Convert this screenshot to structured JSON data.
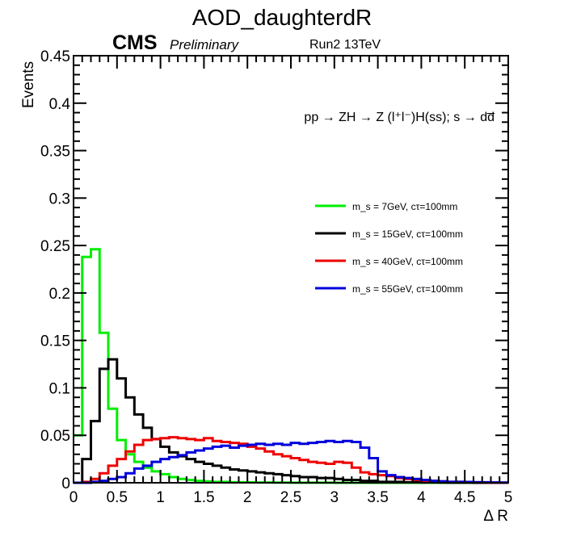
{
  "chart_data": {
    "type": "histogram",
    "title": "AOD_daughterdR",
    "cms_label": "CMS",
    "cms_sublabel": "Preliminary",
    "run_label": "Run2 13TeV",
    "process_label": "pp → ZH → Z (l⁺l⁻)H(ss); s → dd̅",
    "xlabel": "Δ R",
    "ylabel": "Events",
    "xlim": [
      0,
      5
    ],
    "ylim": [
      0,
      0.45
    ],
    "xticks": [
      0,
      0.5,
      1,
      1.5,
      2,
      2.5,
      3,
      3.5,
      4,
      4.5,
      5
    ],
    "xtick_labels": [
      "0",
      "0.5",
      "1",
      "1.5",
      "2",
      "2.5",
      "3",
      "3.5",
      "4",
      "4.5",
      "5"
    ],
    "yticks": [
      0,
      0.05,
      0.1,
      0.15,
      0.2,
      0.25,
      0.3,
      0.35,
      0.4,
      0.45
    ],
    "ytick_labels": [
      "0",
      "0.05",
      "0.1",
      "0.15",
      "0.2",
      "0.25",
      "0.3",
      "0.35",
      "0.4",
      "0.45"
    ],
    "bin_width": 0.1,
    "bin_edges_start": 0,
    "legend_position": "right-middle",
    "series": [
      {
        "name": "m_s = 7GeV, cτ=100mm",
        "color": "#00ee00",
        "values": [
          0.05,
          0.238,
          0.246,
          0.158,
          0.078,
          0.045,
          0.03,
          0.022,
          0.016,
          0.012,
          0.009,
          0.006,
          0.004,
          0.003,
          0.002,
          0.0015,
          0.001,
          0.001,
          0.0005,
          0.0005,
          0.0005,
          0.0003,
          0.0003,
          0.0002,
          0.0002,
          0.0001,
          0.0001,
          0.0001,
          0.0001,
          0.0001,
          0,
          0,
          0,
          0,
          0,
          0,
          0,
          0,
          0,
          0,
          0,
          0,
          0,
          0,
          0,
          0,
          0,
          0,
          0,
          0
        ]
      },
      {
        "name": "m_s = 15GeV, cτ=100mm",
        "color": "#000000",
        "values": [
          0.0,
          0.025,
          0.065,
          0.12,
          0.13,
          0.11,
          0.09,
          0.072,
          0.058,
          0.046,
          0.038,
          0.032,
          0.028,
          0.025,
          0.022,
          0.02,
          0.018,
          0.016,
          0.014,
          0.013,
          0.012,
          0.011,
          0.01,
          0.009,
          0.008,
          0.007,
          0.006,
          0.006,
          0.005,
          0.005,
          0.004,
          0.003,
          0.003,
          0.002,
          0.002,
          0.001,
          0.001,
          0.001,
          0.0005,
          0.0005,
          0.0003,
          0.0003,
          0.0002,
          0.0001,
          0.0001,
          0.0001,
          0,
          0,
          0,
          0
        ]
      },
      {
        "name": "m_s = 40GeV, cτ=100mm",
        "color": "#ee0000",
        "values": [
          0,
          0.001,
          0.004,
          0.01,
          0.018,
          0.025,
          0.033,
          0.04,
          0.045,
          0.046,
          0.047,
          0.048,
          0.047,
          0.046,
          0.045,
          0.047,
          0.044,
          0.043,
          0.042,
          0.041,
          0.038,
          0.036,
          0.033,
          0.03,
          0.028,
          0.026,
          0.024,
          0.022,
          0.021,
          0.02,
          0.022,
          0.021,
          0.016,
          0.011,
          0.009,
          0.008,
          0.007,
          0.005,
          0.004,
          0.003,
          0.002,
          0.002,
          0.0015,
          0.001,
          0.001,
          0.0005,
          0.0005,
          0.0003,
          0.0002,
          0.0001
        ]
      },
      {
        "name": "m_s = 55GeV, cτ=100mm",
        "color": "#0000dd",
        "values": [
          0,
          0,
          0.001,
          0.002,
          0.004,
          0.006,
          0.01,
          0.015,
          0.018,
          0.022,
          0.025,
          0.027,
          0.029,
          0.032,
          0.034,
          0.036,
          0.038,
          0.039,
          0.037,
          0.039,
          0.04,
          0.041,
          0.04,
          0.041,
          0.04,
          0.042,
          0.041,
          0.042,
          0.043,
          0.044,
          0.043,
          0.044,
          0.043,
          0.037,
          0.026,
          0.012,
          0.008,
          0.006,
          0.005,
          0.004,
          0.003,
          0.002,
          0.0015,
          0.001,
          0.001,
          0.0008,
          0.0005,
          0.0005,
          0.0003,
          0.0002
        ]
      }
    ]
  }
}
